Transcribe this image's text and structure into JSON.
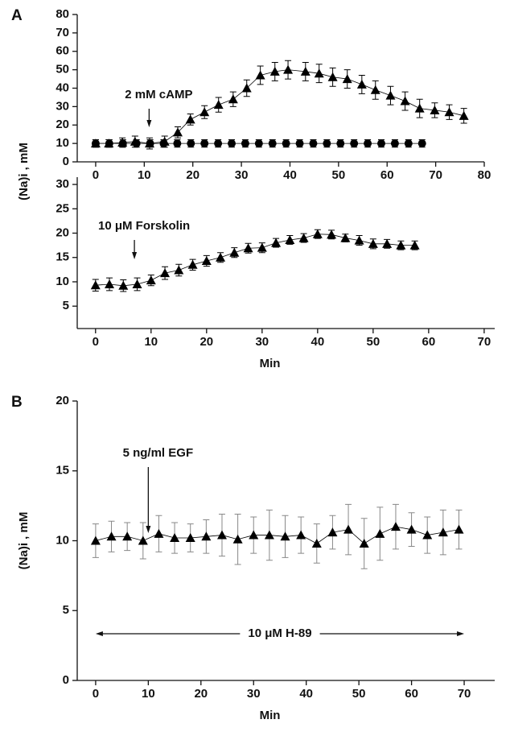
{
  "chart_data": [
    {
      "type": "line",
      "panel_label": "A",
      "ylabel": "(Na)i , mM",
      "xlim": [
        -3.8,
        80
      ],
      "xticks": [
        0,
        10,
        20,
        30,
        40,
        50,
        60,
        70,
        80
      ],
      "ylim": [
        0,
        80
      ],
      "yticks": [
        0,
        10,
        20,
        30,
        40,
        50,
        60,
        70,
        80
      ],
      "annotations": [
        {
          "text": "2 mM cAMP",
          "x": 11
        }
      ],
      "series": [
        {
          "marker": "triangle",
          "color": "#000000",
          "error_color": "#000000",
          "x": [
            0,
            2.7,
            5.5,
            8.1,
            11.1,
            14.2,
            16.9,
            19.5,
            22.4,
            25.3,
            28.3,
            31.1,
            33.9,
            36.9,
            39.6,
            43.2,
            46,
            48.8,
            51.8,
            54.8,
            57.6,
            60.7,
            63.7,
            66.7,
            69.8,
            72.8,
            75.8
          ],
          "values": [
            10,
            10,
            10.5,
            11,
            10,
            11,
            16,
            23,
            27,
            31,
            34,
            40,
            47,
            49,
            50,
            49,
            48,
            46,
            45,
            42,
            39,
            36,
            33,
            29,
            28,
            27,
            25
          ],
          "errors": [
            2,
            2,
            2.5,
            3,
            3,
            3,
            3,
            3,
            3.5,
            4,
            4,
            4.5,
            5,
            5,
            5,
            5,
            5,
            5,
            5,
            5,
            5,
            5,
            5,
            5,
            4,
            4,
            4
          ]
        },
        {
          "marker": "circle",
          "color": "#000000",
          "error_color": "#000000",
          "x": [
            0,
            2.8,
            5.6,
            8.4,
            11.2,
            14,
            16.8,
            19.6,
            22.4,
            25.2,
            28,
            30.8,
            33.6,
            36.4,
            39.2,
            42,
            44.8,
            47.6,
            50.4,
            53.2,
            56,
            58.8,
            61.6,
            64.4,
            67.2
          ],
          "values": [
            10,
            10,
            10,
            10,
            10,
            10,
            10,
            10,
            10,
            10,
            10,
            10,
            10,
            10,
            10,
            10,
            10,
            10,
            10,
            10,
            10,
            10,
            10,
            10,
            10
          ],
          "errors": [
            2,
            2,
            2,
            2,
            2,
            2,
            2,
            2,
            2,
            2,
            2,
            2,
            2,
            2,
            2,
            2,
            2,
            2,
            2,
            2,
            2,
            2,
            2,
            2,
            2
          ]
        }
      ]
    },
    {
      "type": "line",
      "xlabel": "Min",
      "xlim": [
        -3.3,
        71.9
      ],
      "xticks": [
        0,
        10,
        20,
        30,
        40,
        50,
        60,
        70
      ],
      "ylim": [
        0.4,
        31.5
      ],
      "yticks": [
        5,
        10,
        15,
        20,
        25,
        30
      ],
      "annotations": [
        {
          "text": "10 μM Forskolin",
          "x": 7
        }
      ],
      "series": [
        {
          "marker": "triangle",
          "color": "#000000",
          "error_color": "#000000",
          "x": [
            0,
            2.5,
            5,
            7.5,
            10,
            12.5,
            15,
            17.5,
            20,
            22.5,
            25,
            27.5,
            30,
            32.5,
            35,
            37.5,
            40,
            42.5,
            45,
            47.5,
            50,
            52.5,
            55,
            57.5
          ],
          "values": [
            9.3,
            9.5,
            9.2,
            9.5,
            10.3,
            11.8,
            12.4,
            13.5,
            14.3,
            15,
            16,
            16.9,
            17,
            18,
            18.6,
            19,
            19.8,
            19.7,
            19,
            18.5,
            17.8,
            17.8,
            17.5,
            17.5
          ],
          "errors": [
            1.2,
            1.3,
            1.2,
            1.3,
            1.1,
            1.3,
            1.2,
            1.1,
            1.1,
            1,
            1,
            1,
            1,
            0.9,
            0.9,
            0.9,
            0.9,
            0.9,
            0.8,
            1,
            1,
            0.9,
            0.9,
            0.9
          ]
        }
      ]
    },
    {
      "type": "line",
      "panel_label": "B",
      "ylabel": "(Na)i , mM",
      "xlabel": "Min",
      "xlim": [
        -3.5,
        75.8
      ],
      "xticks": [
        0,
        10,
        20,
        30,
        40,
        50,
        60,
        70
      ],
      "ylim": [
        0,
        20
      ],
      "yticks": [
        0,
        5,
        10,
        15,
        20
      ],
      "annotations": [
        {
          "text": "5 ng/ml EGF",
          "x": 10
        }
      ],
      "span_annotation": {
        "text": "10 μM H-89",
        "span": [
          0,
          70
        ]
      },
      "series": [
        {
          "marker": "triangle",
          "color": "#000000",
          "error_color": "#888888",
          "x": [
            0,
            3,
            6,
            9,
            12,
            15,
            18,
            21,
            24,
            27,
            30,
            33,
            36,
            39,
            42,
            45,
            48,
            51,
            54,
            57,
            60,
            63,
            66,
            69
          ],
          "values": [
            10,
            10.3,
            10.3,
            10,
            10.5,
            10.2,
            10.2,
            10.3,
            10.4,
            10.1,
            10.4,
            10.4,
            10.3,
            10.4,
            9.8,
            10.6,
            10.8,
            9.8,
            10.5,
            11,
            10.8,
            10.4,
            10.6,
            10.8
          ],
          "errors": [
            1.2,
            1.1,
            1,
            1.3,
            1.3,
            1.1,
            1,
            1.2,
            1.5,
            1.8,
            1.3,
            1.8,
            1.5,
            1.3,
            1.4,
            1.2,
            1.8,
            1.8,
            1.9,
            1.6,
            1.2,
            1.3,
            1.6,
            1.4
          ]
        }
      ]
    }
  ]
}
